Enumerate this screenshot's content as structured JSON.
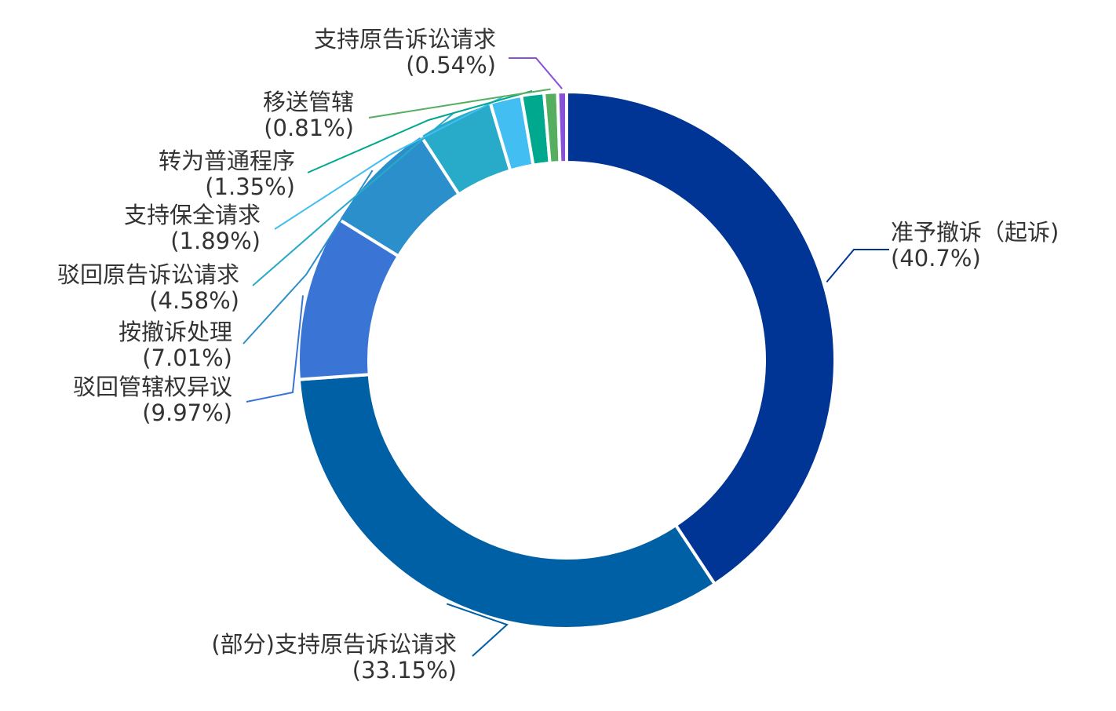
{
  "chart_data": {
    "type": "pie",
    "donut": true,
    "unit": "%",
    "slices": [
      {
        "name": "准予撤诉（起诉)",
        "pct_label": "(40.7%)",
        "value": 40.7,
        "color": "#003595"
      },
      {
        "name": "(部分)支持原告诉讼请求",
        "pct_label": "(33.15%)",
        "value": 33.15,
        "color": "#0060A6"
      },
      {
        "name": "驳回管辖权异议",
        "pct_label": "(9.97%)",
        "value": 9.97,
        "color": "#3A75D5"
      },
      {
        "name": "按撤诉处理",
        "pct_label": "(7.01%)",
        "value": 7.01,
        "color": "#2B8FCC"
      },
      {
        "name": "驳回原告诉讼请求",
        "pct_label": "(4.58%)",
        "value": 4.58,
        "color": "#28AAC9"
      },
      {
        "name": "支持保全请求",
        "pct_label": "(1.89%)",
        "value": 1.89,
        "color": "#43BEF2"
      },
      {
        "name": "转为普通程序",
        "pct_label": "(1.35%)",
        "value": 1.35,
        "color": "#00A88E"
      },
      {
        "name": "移送管辖",
        "pct_label": "(0.81%)",
        "value": 0.81,
        "color": "#56AE61"
      },
      {
        "name": "支持原告诉讼请求",
        "pct_label": "(0.54%)",
        "value": 0.54,
        "color": "#8751D8"
      }
    ],
    "legend": "none"
  }
}
